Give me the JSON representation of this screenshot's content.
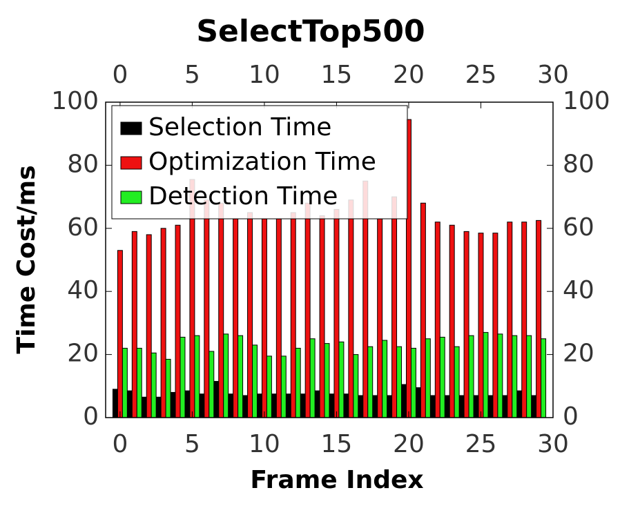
{
  "chart_data": {
    "type": "bar",
    "title": "SelectTop500",
    "x_label": "Frame Index",
    "y_label": "Time Cost/ms",
    "categories": [
      0,
      1,
      2,
      3,
      4,
      5,
      6,
      7,
      8,
      9,
      10,
      11,
      12,
      13,
      14,
      15,
      16,
      17,
      18,
      19,
      20,
      21,
      22,
      23,
      24,
      25,
      26,
      27,
      28,
      29
    ],
    "series": [
      {
        "name": "Selection Time",
        "color": "#000000",
        "values": [
          9,
          8.5,
          6.5,
          6.5,
          8,
          8.5,
          7.5,
          11.5,
          7.5,
          7,
          7.5,
          7.5,
          7.5,
          7.5,
          8.5,
          7.5,
          7.5,
          7,
          7,
          7,
          10.5,
          9.5,
          7,
          7,
          7,
          7,
          7,
          7,
          8.5,
          7
        ]
      },
      {
        "name": "Optimization Time",
        "color": "#ee1111",
        "values": [
          53,
          59,
          58,
          60,
          61,
          75.5,
          69,
          68,
          63,
          65,
          63,
          63,
          65,
          68,
          64,
          66,
          69,
          75,
          63,
          70,
          94.5,
          68,
          62,
          61,
          59,
          58.5,
          58.5,
          62,
          62,
          62.5
        ]
      },
      {
        "name": "Detection Time",
        "color": "#22ee22",
        "values": [
          22,
          22,
          20.5,
          18.5,
          25.5,
          26,
          21,
          26.5,
          26,
          23,
          19.5,
          19.5,
          22,
          25,
          23.5,
          24,
          20,
          22.5,
          24.5,
          22.5,
          22,
          25,
          25.5,
          22.5,
          26,
          27,
          26.5,
          26,
          26,
          25
        ]
      }
    ],
    "xlim": [
      -1,
      30
    ],
    "xticks": [
      0,
      5,
      10,
      15,
      20,
      25,
      30
    ],
    "ylim": [
      0,
      100
    ],
    "yticks": [
      0,
      20,
      40,
      60,
      80,
      100
    ],
    "legend": "upper left"
  }
}
